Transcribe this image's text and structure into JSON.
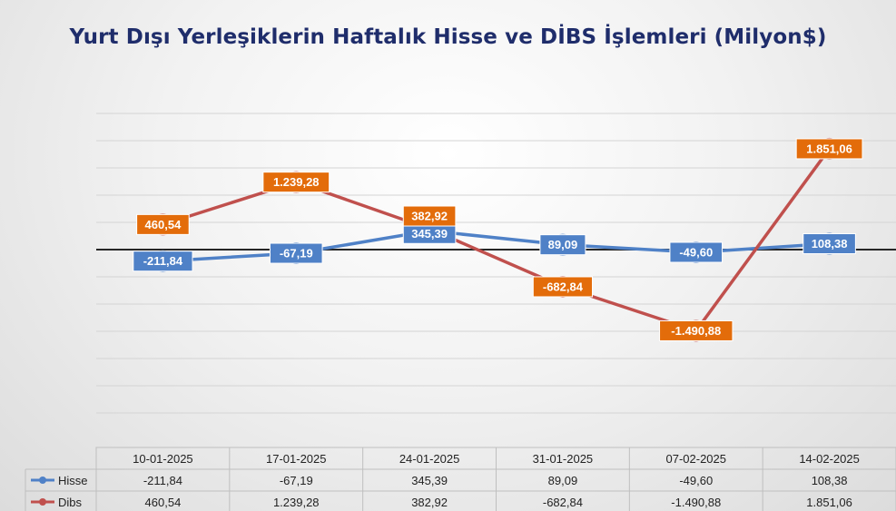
{
  "chart_data": {
    "type": "line",
    "title": "Yurt Dışı Yerleşiklerin Haftalık Hisse ve DİBS İşlemleri (Milyon$)",
    "categories": [
      "10-01-2025",
      "17-01-2025",
      "24-01-2025",
      "31-01-2025",
      "07-02-2025",
      "14-02-2025"
    ],
    "series": [
      {
        "name": "Hisse",
        "color": "#4f81c7",
        "values": [
          -211.84,
          -67.19,
          345.39,
          89.09,
          -49.6,
          108.38
        ],
        "labels": [
          "-211,84",
          "-67,19",
          "345,39",
          "89,09",
          "-49,60",
          "108,38"
        ]
      },
      {
        "name": "Dibs",
        "color": "#c0504d",
        "label_color": "#e36c0a",
        "values": [
          460.54,
          1239.28,
          382.92,
          -682.84,
          -1490.88,
          1851.06
        ],
        "labels": [
          "460,54",
          "1.239,28",
          "382,92",
          "-682,84",
          "-1.490,88",
          "1.851,06"
        ]
      }
    ],
    "ylim": [
      -3000,
      2500
    ],
    "grid": true,
    "legend": "data-table",
    "data_table": true
  }
}
